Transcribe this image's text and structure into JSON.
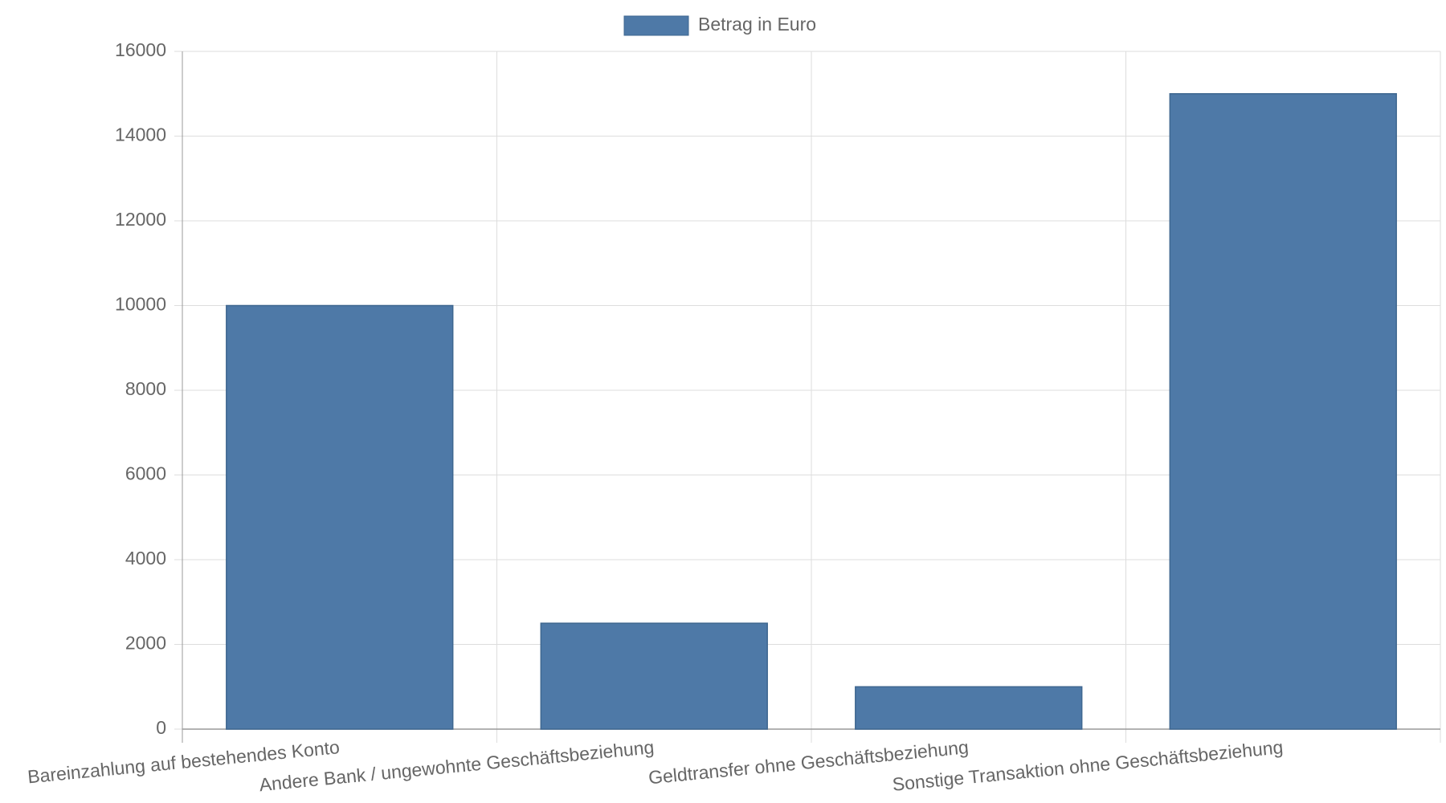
{
  "chart_data": {
    "type": "bar",
    "categories": [
      "Bareinzahlung auf bestehendes Konto",
      "Andere Bank / ungewohnte Geschäftsbeziehung",
      "Geldtransfer ohne Geschäftsbeziehung",
      "Sonstige Transaktion ohne Geschäftsbeziehung"
    ],
    "series": [
      {
        "name": "Betrag in Euro",
        "color": "#4e79a7",
        "values": [
          10000,
          2500,
          1000,
          15000
        ]
      }
    ],
    "ylim": [
      0,
      16000
    ],
    "yticks": [
      0,
      2000,
      4000,
      6000,
      8000,
      10000,
      12000,
      14000,
      16000
    ],
    "grid": true
  }
}
